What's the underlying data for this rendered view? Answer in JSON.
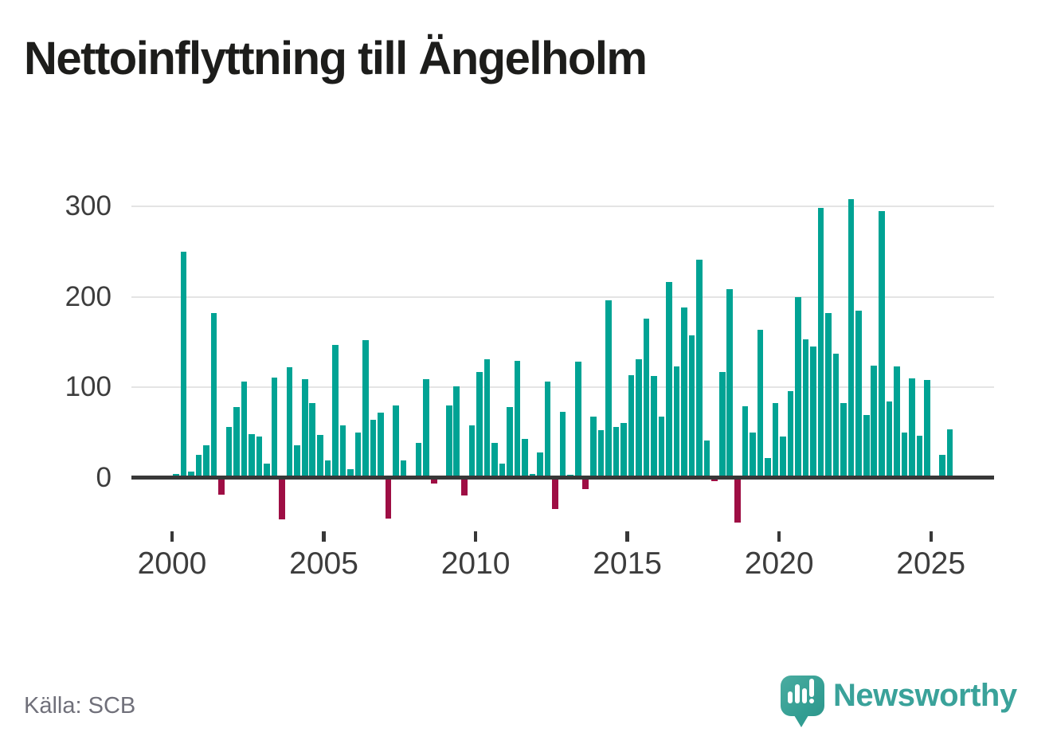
{
  "title": "Nettoinflyttning till Ängelholm",
  "source": "Källa: SCB",
  "logo": {
    "text": "Newsworthy",
    "icon": "newsworthy-speech-bubble-bar-chart-icon"
  },
  "colors": {
    "positive_bar": "#00a394",
    "negative_bar": "#9e0e44",
    "axis": "#383838",
    "gridline": "#e4e4e4",
    "title_text": "#1d1d1b",
    "axis_label": "#3d3d3d",
    "source_text": "#70707a",
    "logo_teal": "#3aa29a"
  },
  "chart_data": {
    "type": "bar",
    "title": "Nettoinflyttning till Ängelholm",
    "xlabel": "",
    "ylabel": "",
    "unit": "net migration per quarter",
    "grid": "horizontal",
    "y_ticks": [
      0,
      100,
      200,
      300
    ],
    "ylim": [
      -60,
      330
    ],
    "x_tick_labels": [
      "2000",
      "2005",
      "2010",
      "2015",
      "2020",
      "2025"
    ],
    "x_tick_quarter_index": [
      0,
      20,
      40,
      60,
      80,
      100
    ],
    "points": [
      [
        "2000Q1",
        4
      ],
      [
        "2000Q2",
        250
      ],
      [
        "2000Q3",
        7
      ],
      [
        "2000Q4",
        25
      ],
      [
        "2001Q1",
        36
      ],
      [
        "2001Q2",
        182
      ],
      [
        "2001Q3",
        -19
      ],
      [
        "2001Q4",
        56
      ],
      [
        "2002Q1",
        78
      ],
      [
        "2002Q2",
        106
      ],
      [
        "2002Q3",
        48
      ],
      [
        "2002Q4",
        45
      ],
      [
        "2003Q1",
        15
      ],
      [
        "2003Q2",
        111
      ],
      [
        "2003Q3",
        -46
      ],
      [
        "2003Q4",
        122
      ],
      [
        "2004Q1",
        36
      ],
      [
        "2004Q2",
        109
      ],
      [
        "2004Q3",
        82
      ],
      [
        "2004Q4",
        47
      ],
      [
        "2005Q1",
        19
      ],
      [
        "2005Q2",
        147
      ],
      [
        "2005Q3",
        58
      ],
      [
        "2005Q4",
        9
      ],
      [
        "2006Q1",
        50
      ],
      [
        "2006Q2",
        152
      ],
      [
        "2006Q3",
        64
      ],
      [
        "2006Q4",
        72
      ],
      [
        "2007Q1",
        -45
      ],
      [
        "2007Q2",
        80
      ],
      [
        "2007Q3",
        19
      ],
      [
        "2007Q4",
        0
      ],
      [
        "2008Q1",
        38
      ],
      [
        "2008Q2",
        109
      ],
      [
        "2008Q3",
        -7
      ],
      [
        "2008Q4",
        0
      ],
      [
        "2009Q1",
        80
      ],
      [
        "2009Q2",
        101
      ],
      [
        "2009Q3",
        -20
      ],
      [
        "2009Q4",
        58
      ],
      [
        "2010Q1",
        117
      ],
      [
        "2010Q2",
        131
      ],
      [
        "2010Q3",
        38
      ],
      [
        "2010Q4",
        15
      ],
      [
        "2011Q1",
        78
      ],
      [
        "2011Q2",
        129
      ],
      [
        "2011Q3",
        43
      ],
      [
        "2011Q4",
        4
      ],
      [
        "2012Q1",
        28
      ],
      [
        "2012Q2",
        106
      ],
      [
        "2012Q3",
        -35
      ],
      [
        "2012Q4",
        73
      ],
      [
        "2013Q1",
        3
      ],
      [
        "2013Q2",
        128
      ],
      [
        "2013Q3",
        -13
      ],
      [
        "2013Q4",
        67
      ],
      [
        "2014Q1",
        52
      ],
      [
        "2014Q2",
        196
      ],
      [
        "2014Q3",
        56
      ],
      [
        "2014Q4",
        60
      ],
      [
        "2015Q1",
        113
      ],
      [
        "2015Q2",
        131
      ],
      [
        "2015Q3",
        176
      ],
      [
        "2015Q4",
        112
      ],
      [
        "2016Q1",
        67
      ],
      [
        "2016Q2",
        216
      ],
      [
        "2016Q3",
        123
      ],
      [
        "2016Q4",
        188
      ],
      [
        "2017Q1",
        157
      ],
      [
        "2017Q2",
        241
      ],
      [
        "2017Q3",
        41
      ],
      [
        "2017Q4",
        -4
      ],
      [
        "2018Q1",
        117
      ],
      [
        "2018Q2",
        208
      ],
      [
        "2018Q3",
        -50
      ],
      [
        "2018Q4",
        79
      ],
      [
        "2019Q1",
        50
      ],
      [
        "2019Q2",
        163
      ],
      [
        "2019Q3",
        22
      ],
      [
        "2019Q4",
        82
      ],
      [
        "2020Q1",
        45
      ],
      [
        "2020Q2",
        96
      ],
      [
        "2020Q3",
        200
      ],
      [
        "2020Q4",
        153
      ],
      [
        "2021Q1",
        145
      ],
      [
        "2021Q2",
        298
      ],
      [
        "2021Q3",
        182
      ],
      [
        "2021Q4",
        137
      ],
      [
        "2022Q1",
        82
      ],
      [
        "2022Q2",
        308
      ],
      [
        "2022Q3",
        185
      ],
      [
        "2022Q4",
        69
      ],
      [
        "2023Q1",
        124
      ],
      [
        "2023Q2",
        295
      ],
      [
        "2023Q3",
        84
      ],
      [
        "2023Q4",
        123
      ],
      [
        "2024Q1",
        50
      ],
      [
        "2024Q2",
        110
      ],
      [
        "2024Q3",
        46
      ],
      [
        "2024Q4",
        108
      ],
      [
        "2025Q1",
        0
      ],
      [
        "2025Q2",
        25
      ],
      [
        "2025Q3",
        53
      ]
    ]
  }
}
